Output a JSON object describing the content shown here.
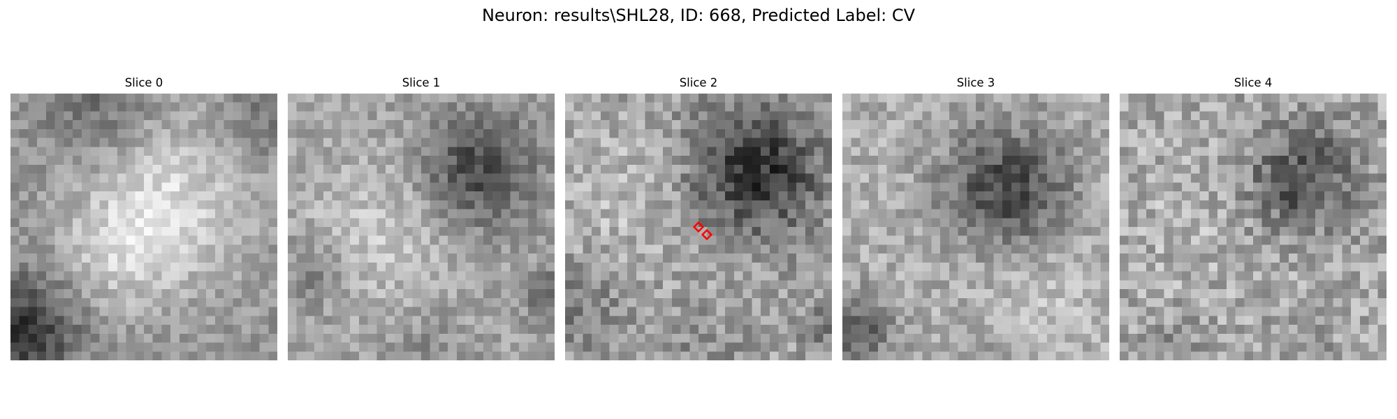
{
  "figure": {
    "title": "Neuron: results\\SHL28, ID: 668, Predicted Label: CV"
  },
  "slices": [
    {
      "title": "Slice 0"
    },
    {
      "title": "Slice 1"
    },
    {
      "title": "Slice 2"
    },
    {
      "title": "Slice 3"
    },
    {
      "title": "Slice 4"
    }
  ],
  "colors": {
    "background": "#ffffff",
    "marker": "#ff0000"
  }
}
